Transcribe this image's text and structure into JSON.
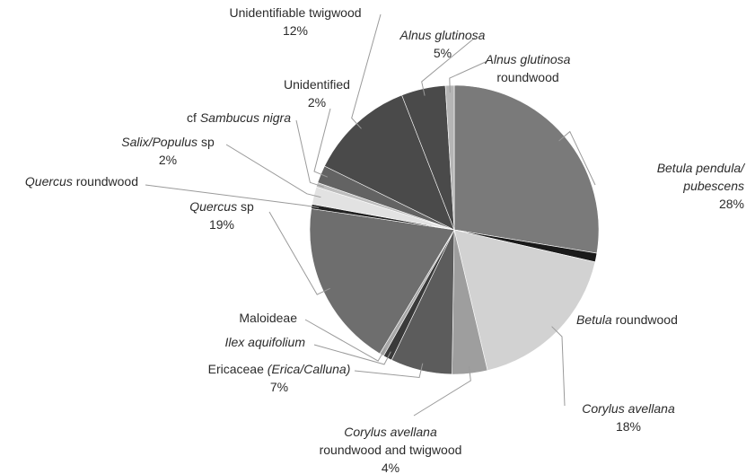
{
  "chart_data": {
    "type": "pie",
    "title": "",
    "slices": [
      {
        "segments": [
          {
            "t": "Betula pendula/",
            "i": true
          }
        ],
        "line2": [
          {
            "t": "pubescens",
            "i": true
          }
        ],
        "pct": "28%",
        "value": 28,
        "color": "#7a7a7a"
      },
      {
        "segments": [
          {
            "t": "Betula",
            "i": true
          },
          {
            "t": " roundwood",
            "i": false
          }
        ],
        "line2": [],
        "pct": "",
        "value": 1,
        "color": "#1a1a1a"
      },
      {
        "segments": [
          {
            "t": "Corylus avellana",
            "i": true
          }
        ],
        "line2": [],
        "pct": "18%",
        "value": 18,
        "color": "#d2d2d2"
      },
      {
        "segments": [
          {
            "t": "Corylus avellana",
            "i": true
          }
        ],
        "line2": [
          {
            "t": "roundwood and twigwood",
            "i": false
          }
        ],
        "pct": "4%",
        "value": 4,
        "color": "#9e9e9e"
      },
      {
        "segments": [
          {
            "t": "Ericaceae ",
            "i": false
          },
          {
            "t": "(Erica/Calluna)",
            "i": true
          }
        ],
        "line2": [],
        "pct": "7%",
        "value": 7,
        "color": "#5c5c5c"
      },
      {
        "segments": [
          {
            "t": "Ilex aquifolium",
            "i": true
          }
        ],
        "line2": [],
        "pct": "",
        "value": 1,
        "color": "#3a3a3a"
      },
      {
        "segments": [
          {
            "t": "Maloideae",
            "i": false
          }
        ],
        "line2": [],
        "pct": "",
        "value": 0.5,
        "color": "#a8a8a8"
      },
      {
        "segments": [
          {
            "t": "Quercus",
            "i": true
          },
          {
            "t": " sp",
            "i": false
          }
        ],
        "line2": [],
        "pct": "19%",
        "value": 19,
        "color": "#6e6e6e"
      },
      {
        "segments": [
          {
            "t": "Quercus",
            "i": true
          },
          {
            "t": " roundwood",
            "i": false
          }
        ],
        "line2": [],
        "pct": "",
        "value": 0.5,
        "color": "#222222"
      },
      {
        "segments": [
          {
            "t": "Salix/Populus",
            "i": true
          },
          {
            "t": " sp",
            "i": false
          }
        ],
        "line2": [],
        "pct": "2%",
        "value": 2,
        "color": "#e2e2e2"
      },
      {
        "segments": [
          {
            "t": "cf ",
            "i": false
          },
          {
            "t": "Sambucus nigra",
            "i": true
          }
        ],
        "line2": [],
        "pct": "",
        "value": 0.5,
        "color": "#bdbdbd"
      },
      {
        "segments": [
          {
            "t": "Unidentified",
            "i": false
          }
        ],
        "line2": [],
        "pct": "2%",
        "value": 2,
        "color": "#636363"
      },
      {
        "segments": [
          {
            "t": "Unidentifiable twigwood",
            "i": false
          }
        ],
        "line2": [],
        "pct": "12%",
        "value": 12,
        "color": "#4a4a4a"
      },
      {
        "segments": [
          {
            "t": "Alnus glutinosa",
            "i": true
          }
        ],
        "line2": [],
        "pct": "5%",
        "value": 5,
        "color": "#4a4a4a"
      },
      {
        "segments": [
          {
            "t": "Alnus glutinosa",
            "i": true
          }
        ],
        "line2": [
          {
            "t": "roundwood",
            "i": false
          }
        ],
        "pct": "",
        "value": 1,
        "color": "#b5b5b5"
      }
    ]
  }
}
